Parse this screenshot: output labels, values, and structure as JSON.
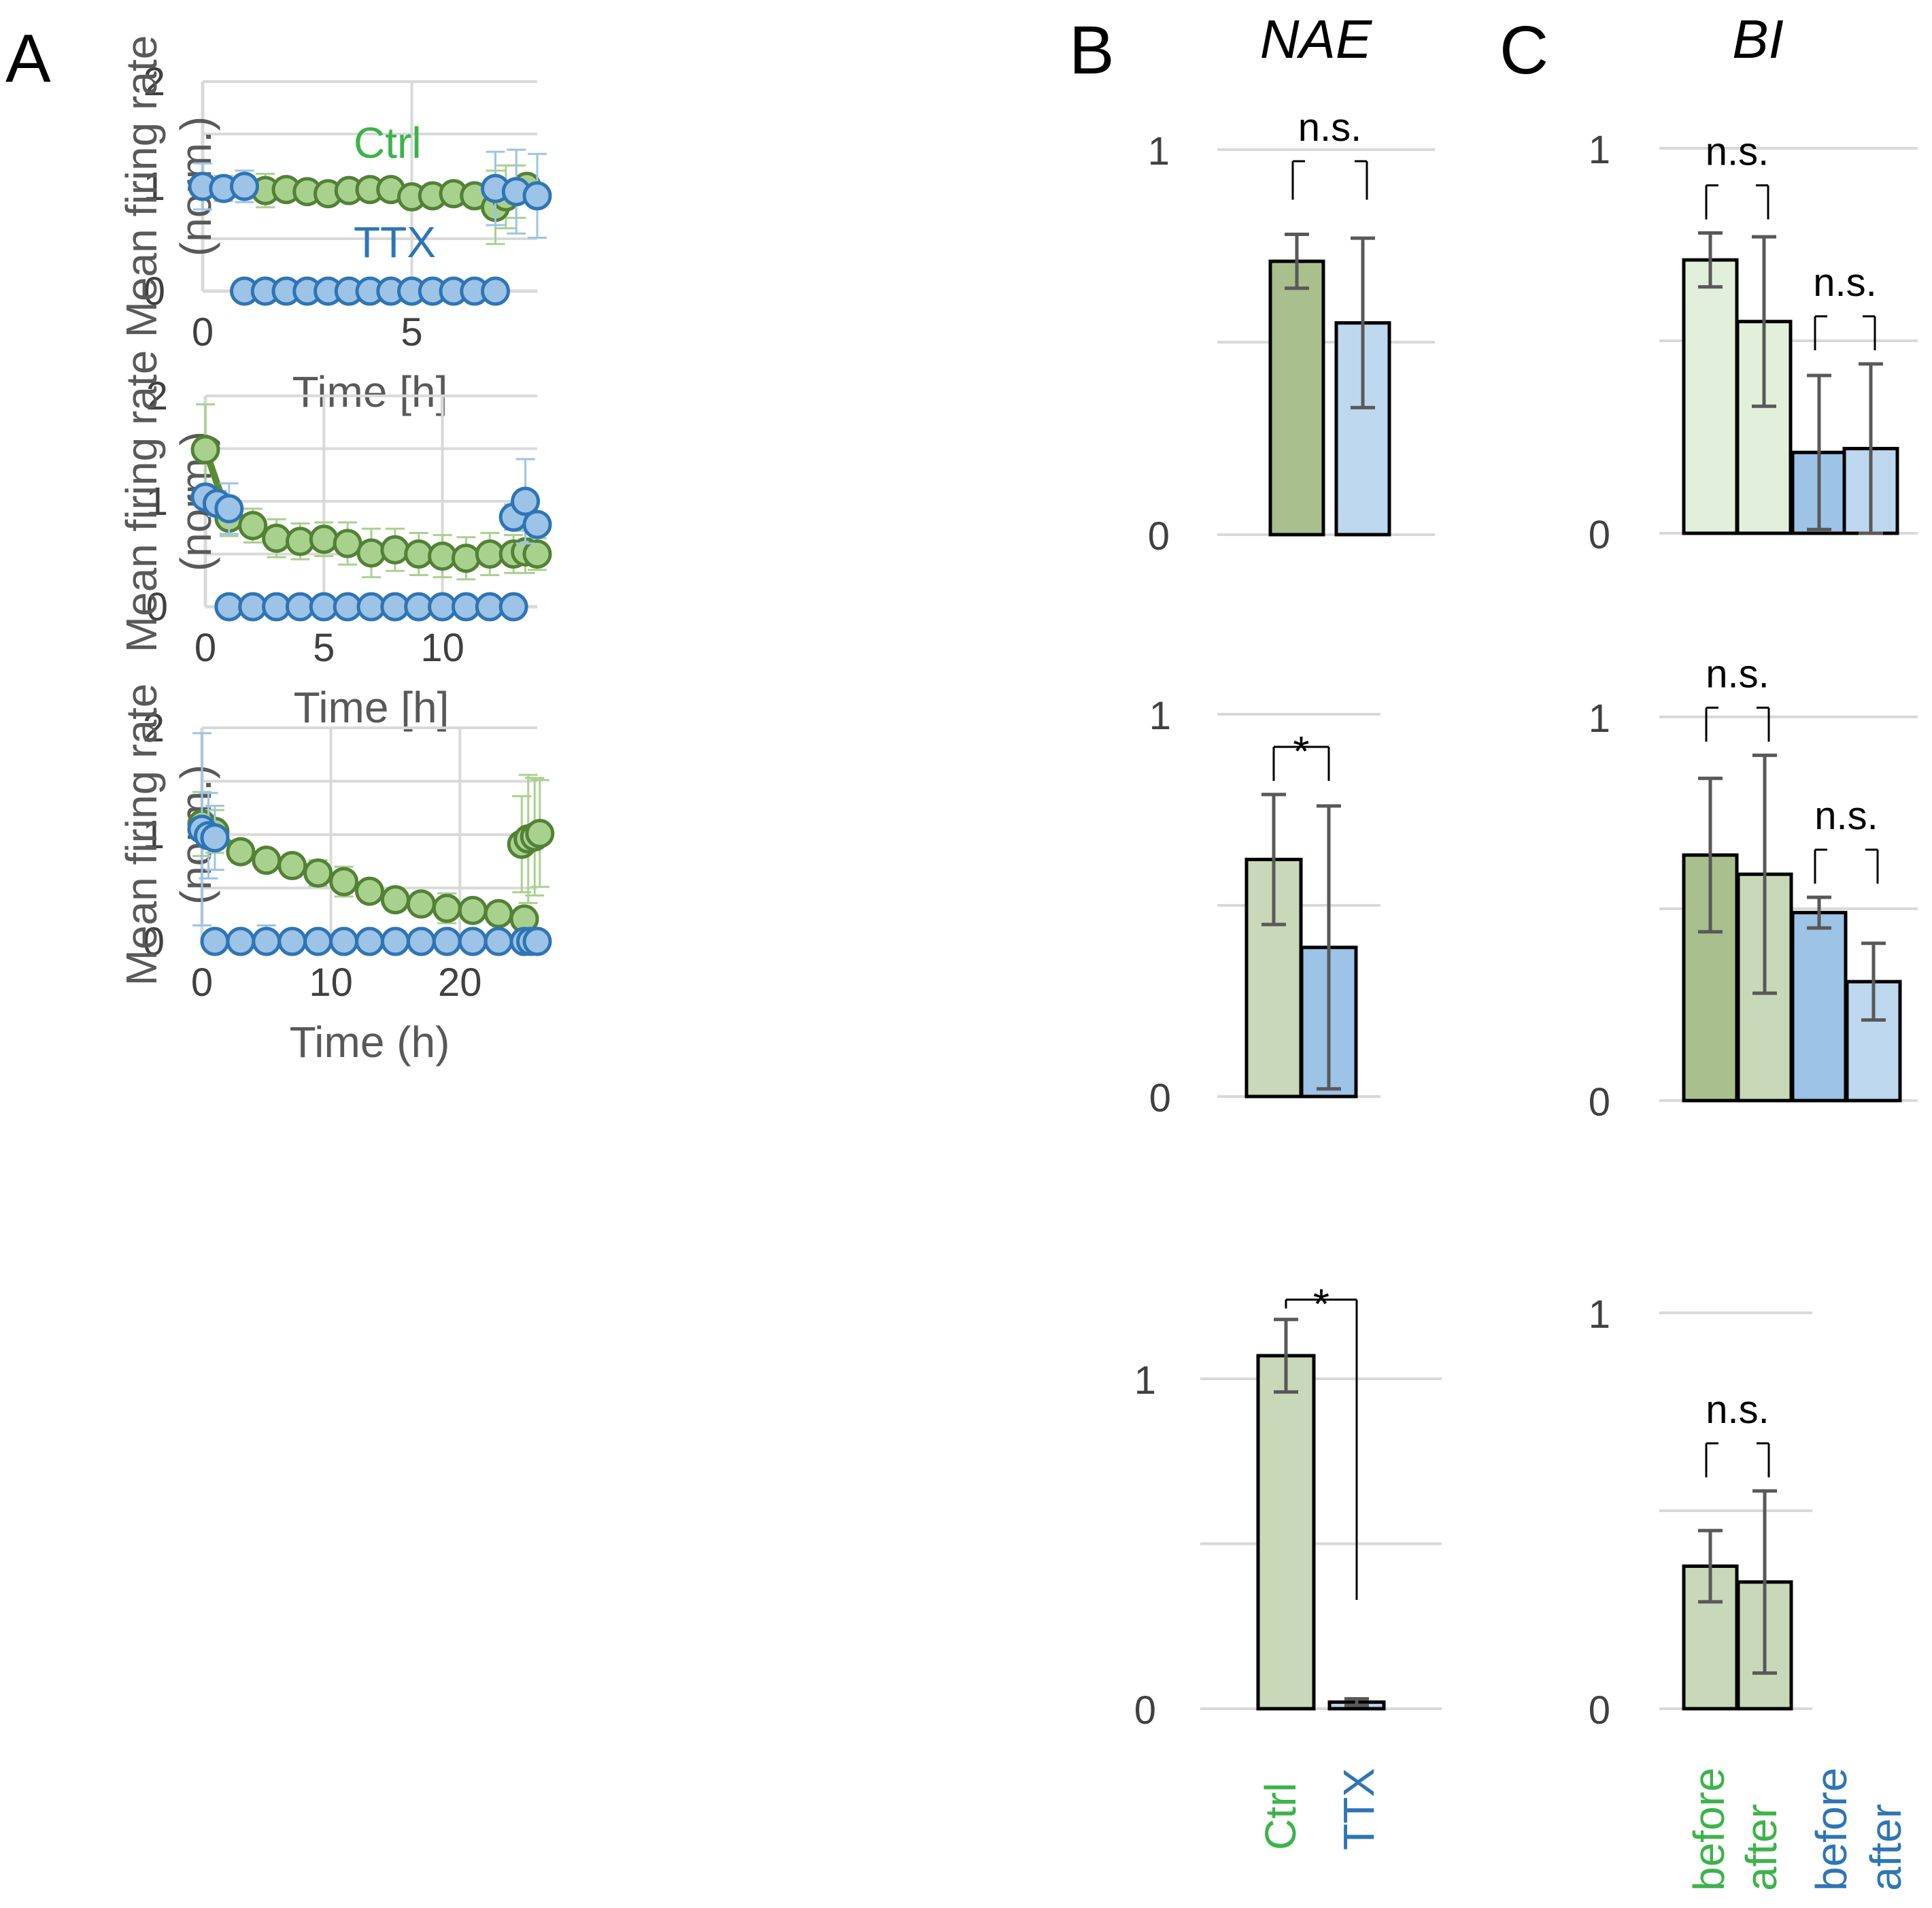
{
  "colors": {
    "ctrl_line": "#5a8a32",
    "ctrl_line_bright": "#2eae45",
    "ctrl_marker_fill": "#a9d18e",
    "ctrl_marker_stroke": "#538135",
    "ctrl_err": "#a9d18e",
    "ttx_line": "#2e75b6",
    "ttx_marker_fill": "#9dc3e6",
    "ttx_marker_stroke": "#2e75b6",
    "ttx_err": "#9dc3e6",
    "ctrl_text": "#3cb34a",
    "ttx_text": "#2e75b6",
    "grid": "#d9d9d9",
    "bar_green_dark": "#a9c08e",
    "bar_green_mid": "#c9d8b8",
    "bar_green_light": "#e2efda",
    "bar_blue_dark": "#9dc3e6",
    "bar_blue_light": "#bdd7ee",
    "err_bar": "#595959"
  },
  "panel_labels": {
    "a": "A",
    "b": "B",
    "c": "C"
  },
  "panel_titles": {
    "b": "NAE",
    "c": "BI"
  },
  "chart_data": [
    {
      "id": "A1",
      "type": "line",
      "xlabel": "Time [h]",
      "ylabel_line1": "Mean firing rate",
      "ylabel_line2": "(norm.)",
      "xlim": [
        0,
        8
      ],
      "ylim": [
        0,
        2
      ],
      "xticks": [
        0,
        5
      ],
      "yticks": [
        0,
        1,
        2
      ],
      "labels": {
        "ctrl": "Ctrl",
        "ttx": "TTX"
      },
      "series": [
        {
          "name": "Ctrl",
          "color_key": "ctrl_line",
          "x": [
            1.5,
            2,
            2.5,
            3,
            3.5,
            4,
            4.5,
            5,
            5.5,
            6,
            6.5
          ],
          "y": [
            0.96,
            0.97,
            0.95,
            0.93,
            0.96,
            0.97,
            0.97,
            0.9,
            0.91,
            0.93,
            0.91
          ],
          "err": [
            0.16,
            0.1,
            0.06,
            0.06,
            0.1,
            0.07,
            0.06,
            0.08,
            0.06,
            0.06,
            0.06
          ]
        },
        {
          "name": "Ctrl",
          "color_key": "ctrl_line",
          "x": [
            7,
            7.25,
            7.5,
            7.75
          ],
          "y": [
            0.8,
            0.9,
            0.95,
            1.0
          ],
          "err": [
            0.35,
            0.3,
            0.25,
            0.1
          ]
        },
        {
          "name": "TTX",
          "color_key": "ttx_line",
          "x": [
            0,
            0.5,
            1
          ],
          "y": [
            1.0,
            0.98,
            1.0
          ],
          "err": [
            0.22,
            0.12,
            0.15
          ]
        },
        {
          "name": "TTX",
          "color_key": "ttx_line",
          "x": [
            1,
            1.5,
            2,
            2.5,
            3,
            3.5,
            4,
            4.5,
            5,
            5.5,
            6,
            6.5,
            7
          ],
          "y": [
            0,
            0,
            0,
            0,
            0,
            0,
            0,
            0,
            0,
            0,
            0,
            0,
            0
          ],
          "err": []
        },
        {
          "name": "TTX",
          "color_key": "ttx_line",
          "x": [
            7,
            7.5,
            8
          ],
          "y": [
            0.98,
            0.95,
            0.91
          ],
          "err": [
            0.35,
            0.4,
            0.4
          ]
        }
      ]
    },
    {
      "id": "A2",
      "type": "line",
      "xlabel": "Time [h]",
      "ylabel_line1": "Mean firing rate",
      "ylabel_line2": "(norm.)",
      "xlim": [
        0,
        14
      ],
      "ylim": [
        0,
        2
      ],
      "xticks": [
        0,
        5,
        10
      ],
      "yticks": [
        0,
        1,
        2
      ],
      "series": [
        {
          "name": "Ctrl",
          "color_key": "ctrl_line",
          "x": [
            0,
            1,
            2,
            3,
            4,
            5,
            6,
            7,
            8,
            9,
            10,
            11,
            12,
            13,
            13.5,
            14
          ],
          "y": [
            1.49,
            0.84,
            0.77,
            0.65,
            0.62,
            0.64,
            0.6,
            0.51,
            0.54,
            0.5,
            0.48,
            0.46,
            0.5,
            0.5,
            0.52,
            0.5
          ],
          "err": [
            0.43,
            0.17,
            0.16,
            0.18,
            0.17,
            0.16,
            0.2,
            0.23,
            0.2,
            0.2,
            0.2,
            0.2,
            0.2,
            0.18,
            0.2,
            0.15
          ]
        },
        {
          "name": "TTX",
          "color_key": "ttx_line",
          "x": [
            0,
            0.5,
            1
          ],
          "y": [
            1.04,
            0.98,
            0.93
          ],
          "err": [
            0.1,
            0.12,
            0.24
          ]
        },
        {
          "name": "TTX",
          "color_key": "ttx_line",
          "x": [
            1,
            2,
            3,
            4,
            5,
            6,
            7,
            8,
            9,
            10,
            11,
            12,
            13
          ],
          "y": [
            0,
            0,
            0,
            0,
            0,
            0,
            0,
            0,
            0,
            0,
            0,
            0,
            0
          ],
          "err": []
        },
        {
          "name": "TTX",
          "color_key": "ttx_line",
          "x": [
            13,
            13.5,
            14
          ],
          "y": [
            0.85,
            1.0,
            0.78
          ],
          "err": [
            0.12,
            0.4,
            0.1
          ]
        }
      ]
    },
    {
      "id": "A3",
      "type": "line",
      "xlabel": "Time (h)",
      "ylabel_line1": "Mean firing rate",
      "ylabel_line2": "(norm.)",
      "xlim": [
        0,
        26
      ],
      "ylim": [
        0,
        2
      ],
      "xticks": [
        0,
        10,
        20
      ],
      "yticks": [
        0,
        1,
        2
      ],
      "series": [
        {
          "name": "Ctrl",
          "color_key": "ctrl_line_bright",
          "x": [
            0,
            1,
            3,
            5,
            7,
            9,
            11,
            13,
            15,
            17,
            19,
            21,
            23,
            25
          ],
          "y": [
            1.1,
            1.03,
            0.84,
            0.76,
            0.71,
            0.64,
            0.56,
            0.47,
            0.39,
            0.35,
            0.31,
            0.29,
            0.26,
            0.21
          ],
          "err": [
            0.3,
            0.2,
            0.1,
            0.08,
            0.1,
            0.12,
            0.14,
            0.08,
            0.1,
            0.1,
            0.14,
            0.1,
            0.1,
            0.1
          ]
        },
        {
          "name": "Ctrl",
          "color_key": "ctrl_line_bright",
          "x": [
            24.8,
            25.3,
            25.8,
            26.2
          ],
          "y": [
            0.91,
            0.96,
            0.98,
            1.01
          ],
          "err": [
            0.45,
            0.6,
            0.55,
            0.5
          ]
        },
        {
          "name": "TTX",
          "color_key": "ttx_line",
          "x": [
            0,
            0.5,
            1
          ],
          "y": [
            1.05,
            0.99,
            0.97
          ],
          "err": [
            0.9,
            0.4,
            0.3
          ]
        },
        {
          "name": "TTX",
          "color_key": "ttx_line",
          "x": [
            1,
            3,
            5,
            7,
            9,
            11,
            13,
            15,
            17,
            19,
            21,
            23,
            25,
            25.5,
            26
          ],
          "y": [
            0,
            0,
            0,
            0,
            0,
            0,
            0,
            0,
            0,
            0,
            0,
            0,
            0,
            0,
            0
          ],
          "err": [
            0,
            0,
            0.15,
            0,
            0,
            0,
            0,
            0,
            0,
            0,
            0,
            0,
            0,
            0,
            0
          ]
        }
      ]
    },
    {
      "id": "B1",
      "type": "bar",
      "ylim": [
        0,
        1
      ],
      "yticks": [
        0,
        1
      ],
      "categories": [
        "Ctrl",
        "TTX"
      ],
      "values": [
        0.71,
        0.55
      ],
      "err": [
        0.07,
        0.22
      ],
      "fill_keys": [
        "bar_green_dark",
        "bar_blue_light"
      ],
      "significance": [
        {
          "between": [
            0,
            1
          ],
          "label": "n.s."
        }
      ]
    },
    {
      "id": "B2",
      "type": "bar",
      "ylim": [
        0,
        1
      ],
      "yticks": [
        0,
        1
      ],
      "categories": [
        "Ctrl",
        "TTX"
      ],
      "values": [
        0.62,
        0.39
      ],
      "err": [
        0.17,
        0.37
      ],
      "fill_keys": [
        "bar_green_mid",
        "bar_blue_dark"
      ],
      "significance": [
        {
          "between": [
            0,
            1
          ],
          "label": "*"
        }
      ]
    },
    {
      "id": "B3",
      "type": "bar",
      "ylim": [
        0,
        1.2
      ],
      "yticks": [
        0,
        1
      ],
      "categories": [
        "Ctrl",
        "TTX"
      ],
      "values": [
        1.07,
        0.02
      ],
      "err": [
        0.11,
        0.01
      ],
      "fill_keys": [
        "bar_green_mid",
        "bar_blue_light"
      ],
      "significance": [
        {
          "between": [
            0,
            1
          ],
          "label": "*"
        }
      ]
    },
    {
      "id": "C1",
      "type": "bar",
      "ylim": [
        0,
        1
      ],
      "yticks": [
        0,
        1
      ],
      "categories": [
        "before",
        "after",
        "before",
        "after"
      ],
      "values": [
        0.71,
        0.55,
        0.21,
        0.22
      ],
      "err": [
        0.07,
        0.22,
        0.2,
        0.22
      ],
      "fill_keys": [
        "bar_green_light",
        "bar_green_light",
        "bar_blue_dark",
        "bar_blue_light"
      ],
      "significance": [
        {
          "between": [
            0,
            1
          ],
          "label": "n.s."
        },
        {
          "between": [
            2,
            3
          ],
          "label": "n.s."
        }
      ]
    },
    {
      "id": "C2",
      "type": "bar",
      "ylim": [
        0,
        1
      ],
      "yticks": [
        0,
        1
      ],
      "categories": [
        "before",
        "after",
        "before",
        "after"
      ],
      "values": [
        0.64,
        0.59,
        0.49,
        0.31
      ],
      "err": [
        0.2,
        0.31,
        0.04,
        0.1
      ],
      "fill_keys": [
        "bar_green_dark",
        "bar_green_mid",
        "bar_blue_dark",
        "bar_blue_light"
      ],
      "significance": [
        {
          "between": [
            0,
            1
          ],
          "label": "n.s."
        },
        {
          "between": [
            2,
            3
          ],
          "label": "n.s."
        }
      ]
    },
    {
      "id": "C3",
      "type": "bar",
      "ylim": [
        0,
        1
      ],
      "yticks": [
        0,
        1
      ],
      "categories": [
        "before",
        "after"
      ],
      "values": [
        0.36,
        0.32
      ],
      "err": [
        0.09,
        0.23
      ],
      "fill_keys": [
        "bar_green_mid",
        "bar_green_mid"
      ],
      "significance": [
        {
          "between": [
            0,
            1
          ],
          "label": "n.s."
        }
      ]
    }
  ],
  "category_labels": {
    "b": [
      "Ctrl",
      "TTX"
    ],
    "c": [
      "before",
      "after",
      "before",
      "after"
    ]
  }
}
